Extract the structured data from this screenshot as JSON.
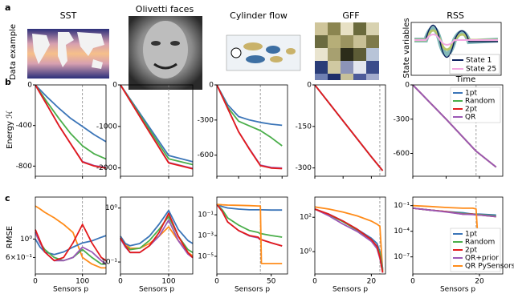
{
  "panel_labels": [
    "a",
    "b",
    "c"
  ],
  "row_a": {
    "ylabel": "Data example",
    "titles": [
      "SST",
      "Olivetti faces",
      "Cylinder flow",
      "GFF",
      "RSS"
    ],
    "rss_ylabel": "State variables",
    "rss_xlabel": "Time",
    "rss_legend": [
      {
        "name": "State 1",
        "color": "#0b1f5e"
      },
      {
        "name": "State 25",
        "color": "#f4a8e2"
      }
    ]
  },
  "chart_data": [
    {
      "type": "line",
      "ylabel": "Energy ℋ",
      "x": [
        0,
        25,
        50,
        75,
        100,
        125,
        150
      ],
      "xlim": [
        0,
        150
      ],
      "xticks": [
        0,
        100
      ],
      "ylim": [
        -900,
        0
      ],
      "yticks": [
        -800,
        -400,
        0
      ],
      "vline": 100,
      "xticklabels": false,
      "series": [
        {
          "name": "1pt",
          "color": "#3b75b8",
          "values": [
            0,
            -120,
            -230,
            -330,
            -410,
            -490,
            -560
          ]
        },
        {
          "name": "Random",
          "color": "#4aae4a",
          "values": [
            0,
            -170,
            -330,
            -480,
            -600,
            -680,
            -730
          ]
        },
        {
          "name": "QR",
          "color": "#9b59b6",
          "values": [
            0,
            -200,
            -400,
            -580,
            -755,
            -795,
            -815
          ]
        },
        {
          "name": "2pt",
          "color": "#e31a1c",
          "values": [
            0,
            -200,
            -400,
            -580,
            -760,
            -800,
            -820
          ]
        }
      ]
    },
    {
      "type": "line",
      "x": [
        0,
        50,
        100,
        150
      ],
      "xlim": [
        0,
        150
      ],
      "xticks": [
        0,
        100
      ],
      "ylim": [
        -2200,
        0
      ],
      "yticks": [
        -2000,
        -1000,
        0
      ],
      "vline": 100,
      "xticklabels": false,
      "series": [
        {
          "name": "1pt",
          "color": "#3b75b8",
          "values": [
            0,
            -850,
            -1700,
            -1850
          ]
        },
        {
          "name": "Random",
          "color": "#4aae4a",
          "values": [
            0,
            -900,
            -1780,
            -1920
          ]
        },
        {
          "name": "QR",
          "color": "#9b59b6",
          "values": [
            0,
            -950,
            -1870,
            -2010
          ]
        },
        {
          "name": "2pt",
          "color": "#e31a1c",
          "values": [
            0,
            -950,
            -1880,
            -2020
          ]
        }
      ]
    },
    {
      "type": "line",
      "x": [
        0,
        10,
        20,
        30,
        40,
        50,
        60
      ],
      "xlim": [
        0,
        65
      ],
      "xticks": [
        0,
        20,
        40,
        60
      ],
      "ylim": [
        -780,
        0
      ],
      "yticks": [
        -600,
        -300,
        0
      ],
      "vline": 40,
      "xticklabels": false,
      "series": [
        {
          "name": "1pt",
          "color": "#3b75b8",
          "values": [
            0,
            -170,
            -270,
            -300,
            -320,
            -335,
            -345
          ]
        },
        {
          "name": "Random",
          "color": "#4aae4a",
          "values": [
            0,
            -190,
            -310,
            -350,
            -390,
            -450,
            -520
          ]
        },
        {
          "name": "QR",
          "color": "#9b59b6",
          "values": [
            0,
            -200,
            -400,
            -545,
            -685,
            -705,
            -710
          ]
        },
        {
          "name": "2pt",
          "color": "#e31a1c",
          "values": [
            0,
            -200,
            -400,
            -550,
            -690,
            -710,
            -715
          ]
        }
      ]
    },
    {
      "type": "line",
      "x": [
        0,
        10,
        20,
        24
      ],
      "xlim": [
        0,
        25
      ],
      "xticks": [
        0,
        10,
        20
      ],
      "ylim": [
        -330,
        0
      ],
      "yticks": [
        -300,
        -150,
        0
      ],
      "vline": 23,
      "xticklabels": false,
      "series": [
        {
          "name": "1pt",
          "color": "#3b75b8",
          "values": [
            0,
            -130,
            -260,
            -310
          ]
        },
        {
          "name": "Random",
          "color": "#4aae4a",
          "values": [
            0,
            -130,
            -260,
            -310
          ]
        },
        {
          "name": "QR",
          "color": "#9b59b6",
          "values": [
            0,
            -130,
            -260,
            -310
          ]
        },
        {
          "name": "2pt",
          "color": "#e31a1c",
          "values": [
            0,
            -130,
            -260,
            -310
          ]
        }
      ]
    },
    {
      "type": "line",
      "x": [
        0,
        10,
        19,
        25
      ],
      "xlim": [
        0,
        27
      ],
      "xticks": [
        0,
        10,
        20
      ],
      "ylim": [
        -800,
        0
      ],
      "yticks": [
        -600,
        -300,
        0
      ],
      "vline": 19,
      "xticklabels": false,
      "legend": "upper right",
      "series": [
        {
          "name": "1pt",
          "color": "#3b75b8",
          "values": [
            0,
            -300,
            -580,
            -720
          ]
        },
        {
          "name": "Random",
          "color": "#4aae4a",
          "values": [
            0,
            -300,
            -580,
            -720
          ]
        },
        {
          "name": "2pt",
          "color": "#e31a1c",
          "values": [
            0,
            -300,
            -580,
            -720
          ]
        },
        {
          "name": "QR",
          "color": "#9b59b6",
          "values": [
            0,
            -300,
            -580,
            -720
          ]
        }
      ]
    },
    {
      "type": "line",
      "log_y": true,
      "ylabel": "RMSE",
      "xlabel": "Sensors p",
      "x": [
        0,
        10,
        20,
        40,
        60,
        80,
        100,
        120,
        140,
        150
      ],
      "xlim": [
        0,
        150
      ],
      "xticks": [
        0,
        100
      ],
      "ylim": [
        0.38,
        3.2
      ],
      "yticks": [
        {
          "value": 1,
          "label": "10⁰"
        },
        {
          "value": 0.6,
          "label": "6×10⁻¹"
        }
      ],
      "vline": 100,
      "series": [
        {
          "name": "QR PySensors",
          "color": "#ff8c1a",
          "values": [
            2.5,
            2.3,
            2.1,
            1.8,
            1.5,
            1.2,
            0.6,
            0.5,
            0.45,
            0.45
          ]
        },
        {
          "name": "1pt",
          "color": "#3b75b8",
          "values": [
            1.0,
            0.8,
            0.7,
            0.65,
            0.7,
            0.8,
            0.9,
            0.95,
            1.05,
            1.1
          ]
        },
        {
          "name": "Random",
          "color": "#4aae4a",
          "values": [
            1.2,
            0.9,
            0.75,
            0.6,
            0.55,
            0.6,
            0.75,
            0.6,
            0.5,
            0.5
          ]
        },
        {
          "name": "QR+prior",
          "color": "#9b59b6",
          "values": [
            1.2,
            0.9,
            0.7,
            0.55,
            0.55,
            0.6,
            0.8,
            0.7,
            0.55,
            0.5
          ]
        },
        {
          "name": "2pt",
          "color": "#e31a1c",
          "values": [
            1.3,
            0.95,
            0.7,
            0.55,
            0.6,
            0.9,
            1.5,
            0.9,
            0.6,
            0.55
          ]
        }
      ]
    },
    {
      "type": "line",
      "log_y": true,
      "xlabel": "Sensors p",
      "x": [
        0,
        10,
        20,
        40,
        60,
        80,
        100,
        120,
        140,
        150
      ],
      "xlim": [
        0,
        150
      ],
      "xticks": [
        0,
        100
      ],
      "ylim": [
        0.06,
        1.6
      ],
      "yticks": [
        {
          "value": 1,
          "label": "10⁰"
        },
        {
          "value": 0.1,
          "label": "10⁻¹"
        }
      ],
      "vline": 100,
      "series": [
        {
          "name": "QR PySensors",
          "color": "#ff8c1a",
          "values": [
            0.3,
            0.22,
            0.18,
            0.18,
            0.22,
            0.3,
            0.45,
            0.25,
            0.15,
            0.13
          ]
        },
        {
          "name": "1pt",
          "color": "#3b75b8",
          "values": [
            0.3,
            0.22,
            0.2,
            0.22,
            0.3,
            0.5,
            0.9,
            0.4,
            0.25,
            0.22
          ]
        },
        {
          "name": "Random",
          "color": "#4aae4a",
          "values": [
            0.28,
            0.2,
            0.17,
            0.18,
            0.25,
            0.4,
            0.7,
            0.3,
            0.17,
            0.15
          ]
        },
        {
          "name": "QR+prior",
          "color": "#9b59b6",
          "values": [
            0.27,
            0.19,
            0.15,
            0.15,
            0.2,
            0.3,
            0.6,
            0.25,
            0.14,
            0.12
          ]
        },
        {
          "name": "2pt",
          "color": "#e31a1c",
          "values": [
            0.28,
            0.2,
            0.15,
            0.15,
            0.2,
            0.35,
            0.8,
            0.3,
            0.15,
            0.12
          ]
        }
      ]
    },
    {
      "type": "line",
      "log_y": true,
      "xlabel": "Sensors p",
      "x": [
        0,
        5,
        10,
        20,
        30,
        38,
        40,
        41,
        50,
        60
      ],
      "xlim": [
        0,
        65
      ],
      "xticks": [
        0,
        50
      ],
      "ylim": [
        2e-07,
        5
      ],
      "yticks": [
        {
          "value": 0.1,
          "label": "10⁻¹"
        },
        {
          "value": 0.001,
          "label": "10⁻³"
        },
        {
          "value": 1e-05,
          "label": "10⁻⁵"
        }
      ],
      "vline": 40,
      "series": [
        {
          "name": "1pt",
          "color": "#3b75b8",
          "values": [
            1,
            0.6,
            0.45,
            0.35,
            0.3,
            0.3,
            0.3,
            0.3,
            0.28,
            0.28
          ]
        },
        {
          "name": "Random",
          "color": "#4aae4a",
          "values": [
            1,
            0.3,
            0.05,
            0.01,
            0.003,
            0.002,
            0.0015,
            0.0015,
            0.001,
            0.0007
          ]
        },
        {
          "name": "QR+prior",
          "color": "#9b59b6",
          "values": [
            1,
            0.2,
            0.02,
            0.003,
            0.0009,
            0.0006,
            0.0004,
            0.0004,
            0.0002,
            0.0001
          ]
        },
        {
          "name": "2pt",
          "color": "#e31a1c",
          "values": [
            1,
            0.2,
            0.02,
            0.003,
            0.001,
            0.0007,
            0.0004,
            0.0004,
            0.0002,
            0.0001
          ]
        },
        {
          "name": "QR PySensors",
          "color": "#ff8c1a",
          "values": [
            1,
            0.9,
            0.85,
            0.8,
            0.75,
            0.7,
            0.7,
            2e-06,
            2e-06,
            2e-06
          ]
        }
      ]
    },
    {
      "type": "line",
      "log_y": true,
      "xlabel": "Sensors p",
      "x": [
        0,
        5,
        10,
        15,
        20,
        22,
        23,
        24
      ],
      "xlim": [
        0,
        25
      ],
      "xticks": [
        0,
        20
      ],
      "ylim": [
        0.05,
        1500
      ],
      "yticks": [
        {
          "value": 100,
          "label": "10²"
        },
        {
          "value": 1,
          "label": "10⁰"
        }
      ],
      "vline": 23,
      "series": [
        {
          "name": "QR PySensors",
          "color": "#ff8c1a",
          "values": [
            400,
            300,
            200,
            120,
            60,
            40,
            30,
            0.07
          ]
        },
        {
          "name": "1pt",
          "color": "#3b75b8",
          "values": [
            300,
            150,
            60,
            20,
            6,
            3,
            1,
            0.1
          ]
        },
        {
          "name": "Random",
          "color": "#4aae4a",
          "values": [
            300,
            140,
            55,
            18,
            5,
            2,
            0.8,
            0.08
          ]
        },
        {
          "name": "QR+prior",
          "color": "#9b59b6",
          "values": [
            300,
            120,
            40,
            15,
            4,
            1.5,
            0.4,
            0.06
          ]
        },
        {
          "name": "2pt",
          "color": "#e31a1c",
          "values": [
            300,
            150,
            60,
            20,
            5,
            2,
            0.5,
            0.06
          ]
        }
      ]
    },
    {
      "type": "line",
      "log_y": true,
      "xlabel": "Sensors p",
      "x": [
        0,
        5,
        10,
        15,
        18,
        19,
        20,
        25
      ],
      "xlim": [
        0,
        27
      ],
      "xticks": [
        0,
        20
      ],
      "ylim": [
        1e-09,
        1
      ],
      "yticks": [
        {
          "value": 0.1,
          "label": "10⁻¹"
        },
        {
          "value": 0.0001,
          "label": "10⁻⁴"
        },
        {
          "value": 1e-07,
          "label": "10⁻⁷"
        }
      ],
      "vline": 19,
      "legend": "lower right",
      "series": [
        {
          "name": "1pt",
          "color": "#3b75b8",
          "values": [
            0.05,
            0.03,
            0.02,
            0.015,
            0.01,
            0.01,
            0.01,
            0.008
          ]
        },
        {
          "name": "Random",
          "color": "#4aae4a",
          "values": [
            0.05,
            0.03,
            0.02,
            0.012,
            0.01,
            0.009,
            0.009,
            0.006
          ]
        },
        {
          "name": "2pt",
          "color": "#e31a1c",
          "values": [
            0.05,
            0.03,
            0.02,
            0.01,
            0.01,
            0.008,
            0.008,
            0.005
          ]
        },
        {
          "name": "QR+prior",
          "color": "#9b59b6",
          "values": [
            0.05,
            0.03,
            0.018,
            0.01,
            0.009,
            0.008,
            0.008,
            0.005
          ]
        },
        {
          "name": "QR PySensors",
          "color": "#ff8c1a",
          "values": [
            0.1,
            0.08,
            0.06,
            0.05,
            0.05,
            0.04,
            1e-08,
            5e-09
          ]
        }
      ]
    }
  ]
}
